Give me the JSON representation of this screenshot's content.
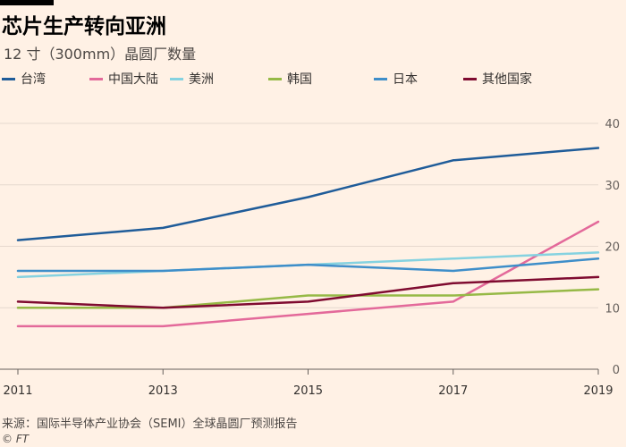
{
  "header": {
    "title": "芯片生产转向亚洲",
    "subtitle": "12 寸（300mm）晶圆厂数量"
  },
  "footer": {
    "source": "来源：国际半导体产业协会（SEMI）全球晶圆厂预测报告",
    "credit": "© FT"
  },
  "chart_data": {
    "type": "line",
    "title": "芯片生产转向亚洲",
    "subtitle": "12 寸（300mm）晶圆厂数量",
    "x": [
      2011,
      2013,
      2015,
      2017,
      2019
    ],
    "x_tick_labels": [
      "2011",
      "2013",
      "2015",
      "2017",
      "2019"
    ],
    "y_ticks": [
      0,
      10,
      20,
      30,
      40
    ],
    "ylim": [
      0,
      40
    ],
    "y_axis_side": "right",
    "grid": true,
    "legend_position": "top",
    "series": [
      {
        "name": "台湾",
        "color": "#1F5C99",
        "values": [
          21,
          23,
          28,
          34,
          36
        ]
      },
      {
        "name": "中国大陆",
        "color": "#E3699A",
        "values": [
          7,
          7,
          9,
          11,
          24
        ]
      },
      {
        "name": "美洲",
        "color": "#85D2E0",
        "values": [
          15,
          16,
          17,
          18,
          19
        ]
      },
      {
        "name": "韩国",
        "color": "#96B946",
        "values": [
          10,
          10,
          12,
          12,
          13
        ]
      },
      {
        "name": "日本",
        "color": "#3E8EC9",
        "values": [
          16,
          16,
          17,
          16,
          18
        ]
      },
      {
        "name": "其他国家",
        "color": "#7F0B30",
        "values": [
          11,
          10,
          11,
          14,
          15
        ]
      }
    ]
  }
}
